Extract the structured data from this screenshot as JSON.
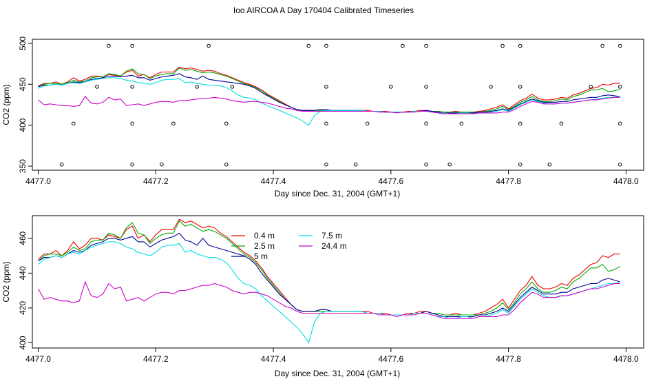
{
  "figure_title": "Ioo AIRCOA A  Day 170404  Calibrated Timeseries",
  "chart_data": [
    {
      "type": "line",
      "panel": "top",
      "title": "",
      "xlabel": "Day since Dec. 31, 2004 (GMT+1)",
      "ylabel": "CO2 (ppm)",
      "xlim": [
        4476.99,
        4478.03
      ],
      "ylim": [
        345,
        505
      ],
      "xticks": [
        4477.0,
        4477.2,
        4477.4,
        4477.6,
        4477.8,
        4478.0
      ],
      "xtick_labels": [
        "4477.0",
        "4477.2",
        "4477.4",
        "4477.6",
        "4477.8",
        "4478.0"
      ],
      "yticks": [
        350,
        400,
        450,
        500
      ],
      "ytick_labels": [
        "350",
        "400",
        "450",
        "500"
      ],
      "grid": false,
      "legend": "none",
      "scatter": {
        "name": "calibration",
        "x": [
          4477.04,
          4477.06,
          4477.1,
          4477.12,
          4477.16,
          4477.16,
          4477.16,
          4477.16,
          4477.21,
          4477.23,
          4477.27,
          4477.29,
          4477.32,
          4477.32,
          4477.33,
          4477.46,
          4477.49,
          4477.49,
          4477.49,
          4477.49,
          4477.54,
          4477.56,
          4477.6,
          4477.62,
          4477.66,
          4477.66,
          4477.66,
          4477.66,
          4477.7,
          4477.72,
          4477.77,
          4477.79,
          4477.82,
          4477.82,
          4477.82,
          4477.82,
          4477.87,
          4477.89,
          4477.94,
          4477.96,
          4477.99,
          4477.99,
          4477.99,
          4477.99
        ],
        "y": [
          352,
          402,
          447,
          497,
          352,
          402,
          447,
          497,
          352,
          402,
          447,
          497,
          352,
          402,
          447,
          497,
          352,
          402,
          447,
          497,
          352,
          402,
          447,
          497,
          352,
          402,
          447,
          497,
          352,
          402,
          447,
          497,
          352,
          402,
          447,
          497,
          352,
          402,
          447,
          497,
          352,
          402,
          447,
          497
        ]
      },
      "series_ref": "bottom"
    },
    {
      "type": "line",
      "panel": "bottom",
      "title": "",
      "xlabel": "Day since Dec. 31, 2004 (GMT+1)",
      "ylabel": "CO2 (ppm)",
      "xlim": [
        4476.99,
        4478.03
      ],
      "ylim": [
        397,
        473
      ],
      "xticks": [
        4477.0,
        4477.2,
        4477.4,
        4477.6,
        4477.8,
        4478.0
      ],
      "xtick_labels": [
        "4477.0",
        "4477.2",
        "4477.4",
        "4477.6",
        "4477.8",
        "4478.0"
      ],
      "yticks": [
        400,
        420,
        440,
        460
      ],
      "ytick_labels": [
        "400",
        "420",
        "440",
        "460"
      ],
      "grid": false,
      "legend": "top-center",
      "x": [
        4477.0,
        4477.01,
        4477.02,
        4477.03,
        4477.04,
        4477.05,
        4477.06,
        4477.07,
        4477.08,
        4477.09,
        4477.1,
        4477.11,
        4477.12,
        4477.13,
        4477.14,
        4477.15,
        4477.16,
        4477.17,
        4477.18,
        4477.19,
        4477.2,
        4477.21,
        4477.22,
        4477.23,
        4477.24,
        4477.25,
        4477.26,
        4477.27,
        4477.28,
        4477.29,
        4477.3,
        4477.31,
        4477.32,
        4477.33,
        4477.34,
        4477.35,
        4477.36,
        4477.37,
        4477.38,
        4477.39,
        4477.4,
        4477.41,
        4477.42,
        4477.43,
        4477.44,
        4477.45,
        4477.46,
        4477.47,
        4477.48,
        4477.49,
        4477.5,
        4477.51,
        4477.52,
        4477.53,
        4477.54,
        4477.55,
        4477.56,
        4477.57,
        4477.58,
        4477.59,
        4477.6,
        4477.61,
        4477.62,
        4477.63,
        4477.64,
        4477.65,
        4477.66,
        4477.67,
        4477.68,
        4477.69,
        4477.7,
        4477.71,
        4477.72,
        4477.73,
        4477.74,
        4477.75,
        4477.76,
        4477.77,
        4477.78,
        4477.79,
        4477.8,
        4477.81,
        4477.82,
        4477.83,
        4477.84,
        4477.85,
        4477.86,
        4477.87,
        4477.88,
        4477.89,
        4477.9,
        4477.91,
        4477.92,
        4477.93,
        4477.94,
        4477.95,
        4477.96,
        4477.97,
        4477.98,
        4477.99
      ],
      "series": [
        {
          "name": "0.4 m",
          "color": "#ee0000",
          "values": [
            448,
            451,
            451,
            453,
            450,
            453,
            458,
            454,
            456,
            460,
            460,
            459,
            462,
            461,
            460,
            465,
            467,
            460,
            462,
            458,
            462,
            465,
            465,
            465,
            471,
            469,
            470,
            468,
            466,
            467,
            466,
            463,
            461,
            458,
            455,
            452,
            450,
            447,
            443,
            438,
            434,
            430,
            426,
            422,
            419,
            418,
            418,
            418,
            419,
            419,
            418,
            418,
            418,
            418,
            418,
            418,
            418,
            417,
            417,
            417,
            416,
            416,
            416,
            417,
            417,
            418,
            418,
            417,
            417,
            416,
            416,
            417,
            416,
            416,
            416,
            417,
            418,
            420,
            422,
            425,
            420,
            425,
            430,
            433,
            438,
            433,
            431,
            431,
            432,
            434,
            433,
            437,
            439,
            442,
            445,
            446,
            450,
            449,
            451,
            451
          ]
        },
        {
          "name": "2.5 m",
          "color": "#00aa00",
          "values": [
            447,
            450,
            451,
            451,
            450,
            452,
            455,
            453,
            454,
            458,
            459,
            459,
            463,
            462,
            460,
            466,
            469,
            463,
            462,
            457,
            460,
            462,
            463,
            463,
            470,
            467,
            468,
            466,
            464,
            465,
            464,
            462,
            460,
            457,
            454,
            451,
            449,
            446,
            442,
            437,
            433,
            429,
            425,
            422,
            419,
            418,
            418,
            418,
            418,
            418,
            418,
            418,
            418,
            418,
            418,
            418,
            417,
            417,
            417,
            416,
            416,
            416,
            416,
            416,
            417,
            417,
            418,
            417,
            417,
            416,
            416,
            416,
            416,
            416,
            416,
            416,
            417,
            418,
            420,
            423,
            419,
            423,
            428,
            431,
            435,
            431,
            429,
            429,
            430,
            432,
            431,
            435,
            437,
            440,
            443,
            443,
            445,
            441,
            442,
            444
          ]
        },
        {
          "name": "5 m",
          "color": "#000099",
          "values": [
            447,
            449,
            449,
            450,
            449,
            451,
            453,
            452,
            453,
            456,
            457,
            458,
            460,
            460,
            459,
            460,
            461,
            458,
            458,
            455,
            457,
            459,
            460,
            461,
            463,
            459,
            458,
            456,
            460,
            456,
            455,
            454,
            453,
            452,
            451,
            450,
            448,
            445,
            440,
            436,
            432,
            428,
            425,
            422,
            419,
            418,
            418,
            418,
            419,
            419,
            418,
            418,
            418,
            418,
            418,
            418,
            417,
            417,
            417,
            416,
            416,
            416,
            416,
            416,
            417,
            417,
            418,
            417,
            416,
            415,
            415,
            415,
            415,
            415,
            415,
            416,
            416,
            417,
            418,
            420,
            418,
            422,
            426,
            429,
            432,
            430,
            428,
            428,
            428,
            429,
            429,
            431,
            432,
            433,
            434,
            434,
            436,
            437,
            436,
            435
          ]
        },
        {
          "name": "7.5 m",
          "color": "#00dddd",
          "values": [
            445,
            448,
            449,
            450,
            449,
            451,
            452,
            451,
            453,
            455,
            456,
            457,
            458,
            458,
            457,
            455,
            454,
            452,
            451,
            450,
            452,
            455,
            456,
            456,
            457,
            452,
            453,
            451,
            450,
            449,
            449,
            448,
            446,
            442,
            437,
            434,
            433,
            431,
            427,
            424,
            421,
            418,
            415,
            412,
            409,
            405,
            400,
            412,
            417,
            418,
            418,
            418,
            418,
            418,
            418,
            418,
            417,
            417,
            417,
            416,
            416,
            416,
            416,
            416,
            417,
            417,
            417,
            416,
            415,
            415,
            414,
            414,
            415,
            415,
            414,
            415,
            415,
            416,
            417,
            419,
            417,
            421,
            425,
            428,
            431,
            429,
            427,
            426,
            426,
            427,
            427,
            428,
            429,
            430,
            431,
            432,
            433,
            434,
            434,
            435
          ]
        },
        {
          "name": "24.4 m",
          "color": "#cc00cc",
          "values": [
            431,
            425,
            426,
            425,
            424,
            424,
            423,
            424,
            435,
            427,
            426,
            428,
            434,
            431,
            432,
            424,
            425,
            426,
            424,
            426,
            428,
            429,
            429,
            428,
            430,
            430,
            431,
            432,
            433,
            433,
            434,
            433,
            432,
            430,
            429,
            428,
            429,
            429,
            428,
            427,
            425,
            423,
            421,
            420,
            418,
            417,
            417,
            417,
            417,
            417,
            417,
            417,
            417,
            417,
            417,
            417,
            417,
            417,
            416,
            416,
            416,
            415,
            416,
            416,
            416,
            417,
            417,
            416,
            415,
            414,
            414,
            414,
            414,
            414,
            414,
            415,
            415,
            415,
            415,
            416,
            416,
            419,
            423,
            426,
            429,
            428,
            426,
            426,
            426,
            427,
            427,
            428,
            429,
            430,
            431,
            431,
            432,
            433,
            434,
            434
          ]
        }
      ]
    }
  ]
}
